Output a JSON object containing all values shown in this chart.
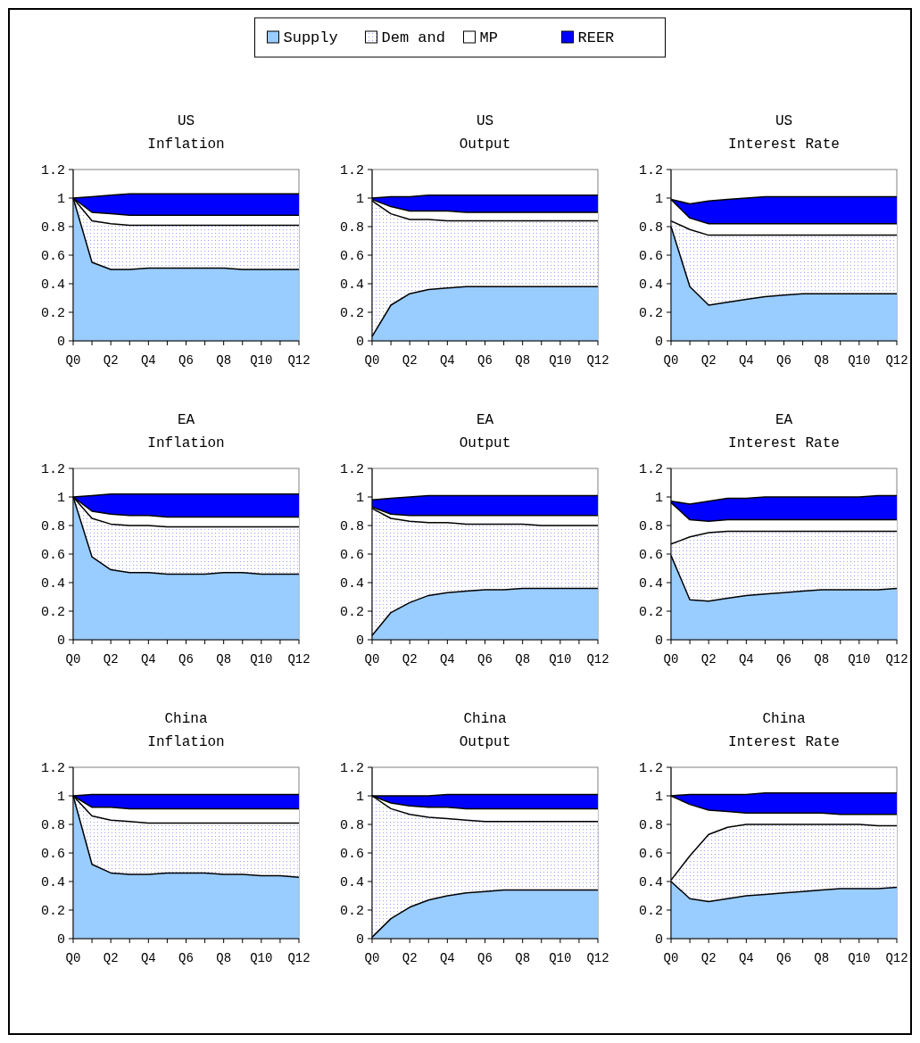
{
  "chart_data": [
    {
      "type": "area",
      "title": "US",
      "subtitle": "Inflation",
      "stacked": true,
      "legend": "top",
      "categories": [
        "Q0",
        null,
        "Q2",
        null,
        "Q4",
        null,
        "Q6",
        null,
        "Q8",
        null,
        "Q10",
        null,
        "Q12"
      ],
      "ylim": [
        0,
        1.2
      ],
      "yticks": [
        0,
        0.2,
        0.4,
        0.6,
        0.8,
        1,
        1.2
      ],
      "series": [
        {
          "name": "Supply",
          "color": "#99ccff",
          "values": [
            1.0,
            0.55,
            0.5,
            0.5,
            0.51,
            0.51,
            0.51,
            0.51,
            0.51,
            0.5,
            0.5,
            0.5,
            0.5
          ]
        },
        {
          "name": "Dem and",
          "color": "#9999ff",
          "values": [
            0,
            0.29,
            0.32,
            0.31,
            0.3,
            0.3,
            0.3,
            0.3,
            0.3,
            0.31,
            0.31,
            0.31,
            0.31
          ]
        },
        {
          "name": "MP",
          "color": "#ffffff",
          "values": [
            0,
            0.06,
            0.07,
            0.07,
            0.07,
            0.07,
            0.07,
            0.07,
            0.07,
            0.07,
            0.07,
            0.07,
            0.07
          ]
        },
        {
          "name": "REER",
          "color": "#0000ff",
          "values": [
            0,
            0.11,
            0.13,
            0.15,
            0.15,
            0.15,
            0.15,
            0.15,
            0.15,
            0.15,
            0.15,
            0.15,
            0.15
          ]
        }
      ]
    },
    {
      "type": "area",
      "title": "US",
      "subtitle": "Output",
      "stacked": true,
      "categories": [
        "Q0",
        null,
        "Q2",
        null,
        "Q4",
        null,
        "Q6",
        null,
        "Q8",
        null,
        "Q10",
        null,
        "Q12"
      ],
      "ylim": [
        0,
        1.2
      ],
      "yticks": [
        0,
        0.2,
        0.4,
        0.6,
        0.8,
        1,
        1.2
      ],
      "series": [
        {
          "color": "#99ccff",
          "values": [
            0.03,
            0.25,
            0.33,
            0.36,
            0.37,
            0.38,
            0.38,
            0.38,
            0.38,
            0.38,
            0.38,
            0.38,
            0.38
          ]
        },
        {
          "color": "#9999ff",
          "values": [
            0.95,
            0.64,
            0.52,
            0.49,
            0.47,
            0.46,
            0.46,
            0.46,
            0.46,
            0.46,
            0.46,
            0.46,
            0.46
          ]
        },
        {
          "color": "#ffffff",
          "values": [
            0.01,
            0.05,
            0.06,
            0.06,
            0.07,
            0.06,
            0.06,
            0.06,
            0.06,
            0.06,
            0.06,
            0.06,
            0.06
          ]
        },
        {
          "color": "#0000ff",
          "values": [
            0.01,
            0.07,
            0.1,
            0.11,
            0.11,
            0.12,
            0.12,
            0.12,
            0.12,
            0.12,
            0.12,
            0.12,
            0.12
          ]
        }
      ]
    },
    {
      "type": "area",
      "title": "US",
      "subtitle": "Interest Rate",
      "stacked": true,
      "categories": [
        "Q0",
        null,
        "Q2",
        null,
        "Q4",
        null,
        "Q6",
        null,
        "Q8",
        null,
        "Q10",
        null,
        "Q12"
      ],
      "ylim": [
        0,
        1.2
      ],
      "yticks": [
        0,
        0.2,
        0.4,
        0.6,
        0.8,
        1,
        1.2
      ],
      "series": [
        {
          "color": "#99ccff",
          "values": [
            0.8,
            0.38,
            0.25,
            0.27,
            0.29,
            0.31,
            0.32,
            0.33,
            0.33,
            0.33,
            0.33,
            0.33,
            0.33
          ]
        },
        {
          "color": "#9999ff",
          "values": [
            0.04,
            0.4,
            0.49,
            0.47,
            0.45,
            0.43,
            0.42,
            0.41,
            0.41,
            0.41,
            0.41,
            0.41,
            0.41
          ]
        },
        {
          "color": "#ffffff",
          "values": [
            0.15,
            0.08,
            0.08,
            0.08,
            0.08,
            0.08,
            0.08,
            0.08,
            0.08,
            0.08,
            0.08,
            0.08,
            0.08
          ]
        },
        {
          "color": "#0000ff",
          "values": [
            0,
            0.1,
            0.16,
            0.17,
            0.18,
            0.19,
            0.19,
            0.19,
            0.19,
            0.19,
            0.19,
            0.19,
            0.19
          ]
        }
      ]
    },
    {
      "type": "area",
      "title": "EA",
      "subtitle": "Inflation",
      "stacked": true,
      "categories": [
        "Q0",
        null,
        "Q2",
        null,
        "Q4",
        null,
        "Q6",
        null,
        "Q8",
        null,
        "Q10",
        null,
        "Q12"
      ],
      "ylim": [
        0,
        1.2
      ],
      "yticks": [
        0,
        0.2,
        0.4,
        0.6,
        0.8,
        1,
        1.2
      ],
      "series": [
        {
          "color": "#99ccff",
          "values": [
            1.0,
            0.58,
            0.49,
            0.47,
            0.47,
            0.46,
            0.46,
            0.46,
            0.47,
            0.47,
            0.46,
            0.46,
            0.46
          ]
        },
        {
          "color": "#9999ff",
          "values": [
            0,
            0.27,
            0.32,
            0.33,
            0.33,
            0.33,
            0.33,
            0.33,
            0.32,
            0.32,
            0.33,
            0.33,
            0.33
          ]
        },
        {
          "color": "#ffffff",
          "values": [
            0,
            0.05,
            0.07,
            0.07,
            0.07,
            0.07,
            0.07,
            0.07,
            0.07,
            0.07,
            0.07,
            0.07,
            0.07
          ]
        },
        {
          "color": "#0000ff",
          "values": [
            0,
            0.11,
            0.14,
            0.15,
            0.15,
            0.16,
            0.16,
            0.16,
            0.16,
            0.16,
            0.16,
            0.16,
            0.16
          ]
        }
      ]
    },
    {
      "type": "area",
      "title": "EA",
      "subtitle": "Output",
      "stacked": true,
      "categories": [
        "Q0",
        null,
        "Q2",
        null,
        "Q4",
        null,
        "Q6",
        null,
        "Q8",
        null,
        "Q10",
        null,
        "Q12"
      ],
      "ylim": [
        0,
        1.2
      ],
      "yticks": [
        0,
        0.2,
        0.4,
        0.6,
        0.8,
        1,
        1.2
      ],
      "series": [
        {
          "color": "#99ccff",
          "values": [
            0.03,
            0.19,
            0.26,
            0.31,
            0.33,
            0.34,
            0.35,
            0.35,
            0.36,
            0.36,
            0.36,
            0.36,
            0.36
          ]
        },
        {
          "color": "#9999ff",
          "values": [
            0.89,
            0.66,
            0.57,
            0.51,
            0.49,
            0.47,
            0.46,
            0.46,
            0.45,
            0.44,
            0.44,
            0.44,
            0.44
          ]
        },
        {
          "color": "#ffffff",
          "values": [
            0.01,
            0.03,
            0.04,
            0.05,
            0.05,
            0.06,
            0.06,
            0.06,
            0.06,
            0.07,
            0.07,
            0.07,
            0.07
          ]
        },
        {
          "color": "#0000ff",
          "values": [
            0.05,
            0.11,
            0.13,
            0.14,
            0.14,
            0.14,
            0.14,
            0.14,
            0.14,
            0.14,
            0.14,
            0.14,
            0.14
          ]
        }
      ]
    },
    {
      "type": "area",
      "title": "EA",
      "subtitle": "Interest Rate",
      "stacked": true,
      "categories": [
        "Q0",
        null,
        "Q2",
        null,
        "Q4",
        null,
        "Q6",
        null,
        "Q8",
        null,
        "Q10",
        null,
        "Q12"
      ],
      "ylim": [
        0,
        1.2
      ],
      "yticks": [
        0,
        0.2,
        0.4,
        0.6,
        0.8,
        1,
        1.2
      ],
      "series": [
        {
          "color": "#99ccff",
          "values": [
            0.59,
            0.28,
            0.27,
            0.29,
            0.31,
            0.32,
            0.33,
            0.34,
            0.35,
            0.35,
            0.35,
            0.35,
            0.36
          ]
        },
        {
          "color": "#9999ff",
          "values": [
            0.08,
            0.44,
            0.48,
            0.47,
            0.45,
            0.44,
            0.43,
            0.42,
            0.41,
            0.41,
            0.41,
            0.41,
            0.4
          ]
        },
        {
          "color": "#ffffff",
          "values": [
            0.29,
            0.12,
            0.08,
            0.08,
            0.08,
            0.08,
            0.08,
            0.08,
            0.08,
            0.08,
            0.08,
            0.08,
            0.08
          ]
        },
        {
          "color": "#0000ff",
          "values": [
            0.01,
            0.11,
            0.14,
            0.15,
            0.15,
            0.16,
            0.16,
            0.16,
            0.16,
            0.16,
            0.16,
            0.17,
            0.17
          ]
        }
      ]
    },
    {
      "type": "area",
      "title": "China",
      "subtitle": "Inflation",
      "stacked": true,
      "categories": [
        "Q0",
        null,
        "Q2",
        null,
        "Q4",
        null,
        "Q6",
        null,
        "Q8",
        null,
        "Q10",
        null,
        "Q12"
      ],
      "ylim": [
        0,
        1.2
      ],
      "yticks": [
        0,
        0.2,
        0.4,
        0.6,
        0.8,
        1,
        1.2
      ],
      "series": [
        {
          "color": "#99ccff",
          "values": [
            1.0,
            0.52,
            0.46,
            0.45,
            0.45,
            0.46,
            0.46,
            0.46,
            0.45,
            0.45,
            0.44,
            0.44,
            0.43
          ]
        },
        {
          "color": "#9999ff",
          "values": [
            0,
            0.34,
            0.37,
            0.37,
            0.36,
            0.35,
            0.35,
            0.35,
            0.36,
            0.36,
            0.37,
            0.37,
            0.38
          ]
        },
        {
          "color": "#ffffff",
          "values": [
            0,
            0.06,
            0.09,
            0.09,
            0.1,
            0.1,
            0.1,
            0.1,
            0.1,
            0.1,
            0.1,
            0.1,
            0.1
          ]
        },
        {
          "color": "#0000ff",
          "values": [
            0,
            0.09,
            0.09,
            0.1,
            0.1,
            0.1,
            0.1,
            0.1,
            0.1,
            0.1,
            0.1,
            0.1,
            0.1
          ]
        }
      ]
    },
    {
      "type": "area",
      "title": "China",
      "subtitle": "Output",
      "stacked": true,
      "categories": [
        "Q0",
        null,
        "Q2",
        null,
        "Q4",
        null,
        "Q6",
        null,
        "Q8",
        null,
        "Q10",
        null,
        "Q12"
      ],
      "ylim": [
        0,
        1.2
      ],
      "yticks": [
        0,
        0.2,
        0.4,
        0.6,
        0.8,
        1,
        1.2
      ],
      "series": [
        {
          "color": "#99ccff",
          "values": [
            0.01,
            0.14,
            0.22,
            0.27,
            0.3,
            0.32,
            0.33,
            0.34,
            0.34,
            0.34,
            0.34,
            0.34,
            0.34
          ]
        },
        {
          "color": "#9999ff",
          "values": [
            0.99,
            0.77,
            0.65,
            0.58,
            0.54,
            0.51,
            0.49,
            0.48,
            0.48,
            0.48,
            0.48,
            0.48,
            0.48
          ]
        },
        {
          "color": "#ffffff",
          "values": [
            0,
            0.04,
            0.06,
            0.07,
            0.08,
            0.08,
            0.09,
            0.09,
            0.09,
            0.09,
            0.09,
            0.09,
            0.09
          ]
        },
        {
          "color": "#0000ff",
          "values": [
            0,
            0.05,
            0.07,
            0.08,
            0.09,
            0.1,
            0.1,
            0.1,
            0.1,
            0.1,
            0.1,
            0.1,
            0.1
          ]
        }
      ]
    },
    {
      "type": "area",
      "title": "China",
      "subtitle": "Interest Rate",
      "stacked": true,
      "categories": [
        "Q0",
        null,
        "Q2",
        null,
        "Q4",
        null,
        "Q6",
        null,
        "Q8",
        null,
        "Q10",
        null,
        "Q12"
      ],
      "ylim": [
        0,
        1.2
      ],
      "yticks": [
        0,
        0.2,
        0.4,
        0.6,
        0.8,
        1,
        1.2
      ],
      "series": [
        {
          "color": "#99ccff",
          "values": [
            0.4,
            0.28,
            0.26,
            0.28,
            0.3,
            0.31,
            0.32,
            0.33,
            0.34,
            0.35,
            0.35,
            0.35,
            0.36
          ]
        },
        {
          "color": "#9999ff",
          "values": [
            0.01,
            0.3,
            0.47,
            0.5,
            0.5,
            0.49,
            0.48,
            0.47,
            0.46,
            0.45,
            0.45,
            0.44,
            0.43
          ]
        },
        {
          "color": "#ffffff",
          "values": [
            0.59,
            0.36,
            0.17,
            0.11,
            0.08,
            0.08,
            0.08,
            0.08,
            0.08,
            0.07,
            0.07,
            0.08,
            0.08
          ]
        },
        {
          "color": "#0000ff",
          "values": [
            0,
            0.07,
            0.11,
            0.12,
            0.13,
            0.14,
            0.14,
            0.14,
            0.14,
            0.15,
            0.15,
            0.15,
            0.15
          ]
        }
      ]
    }
  ]
}
